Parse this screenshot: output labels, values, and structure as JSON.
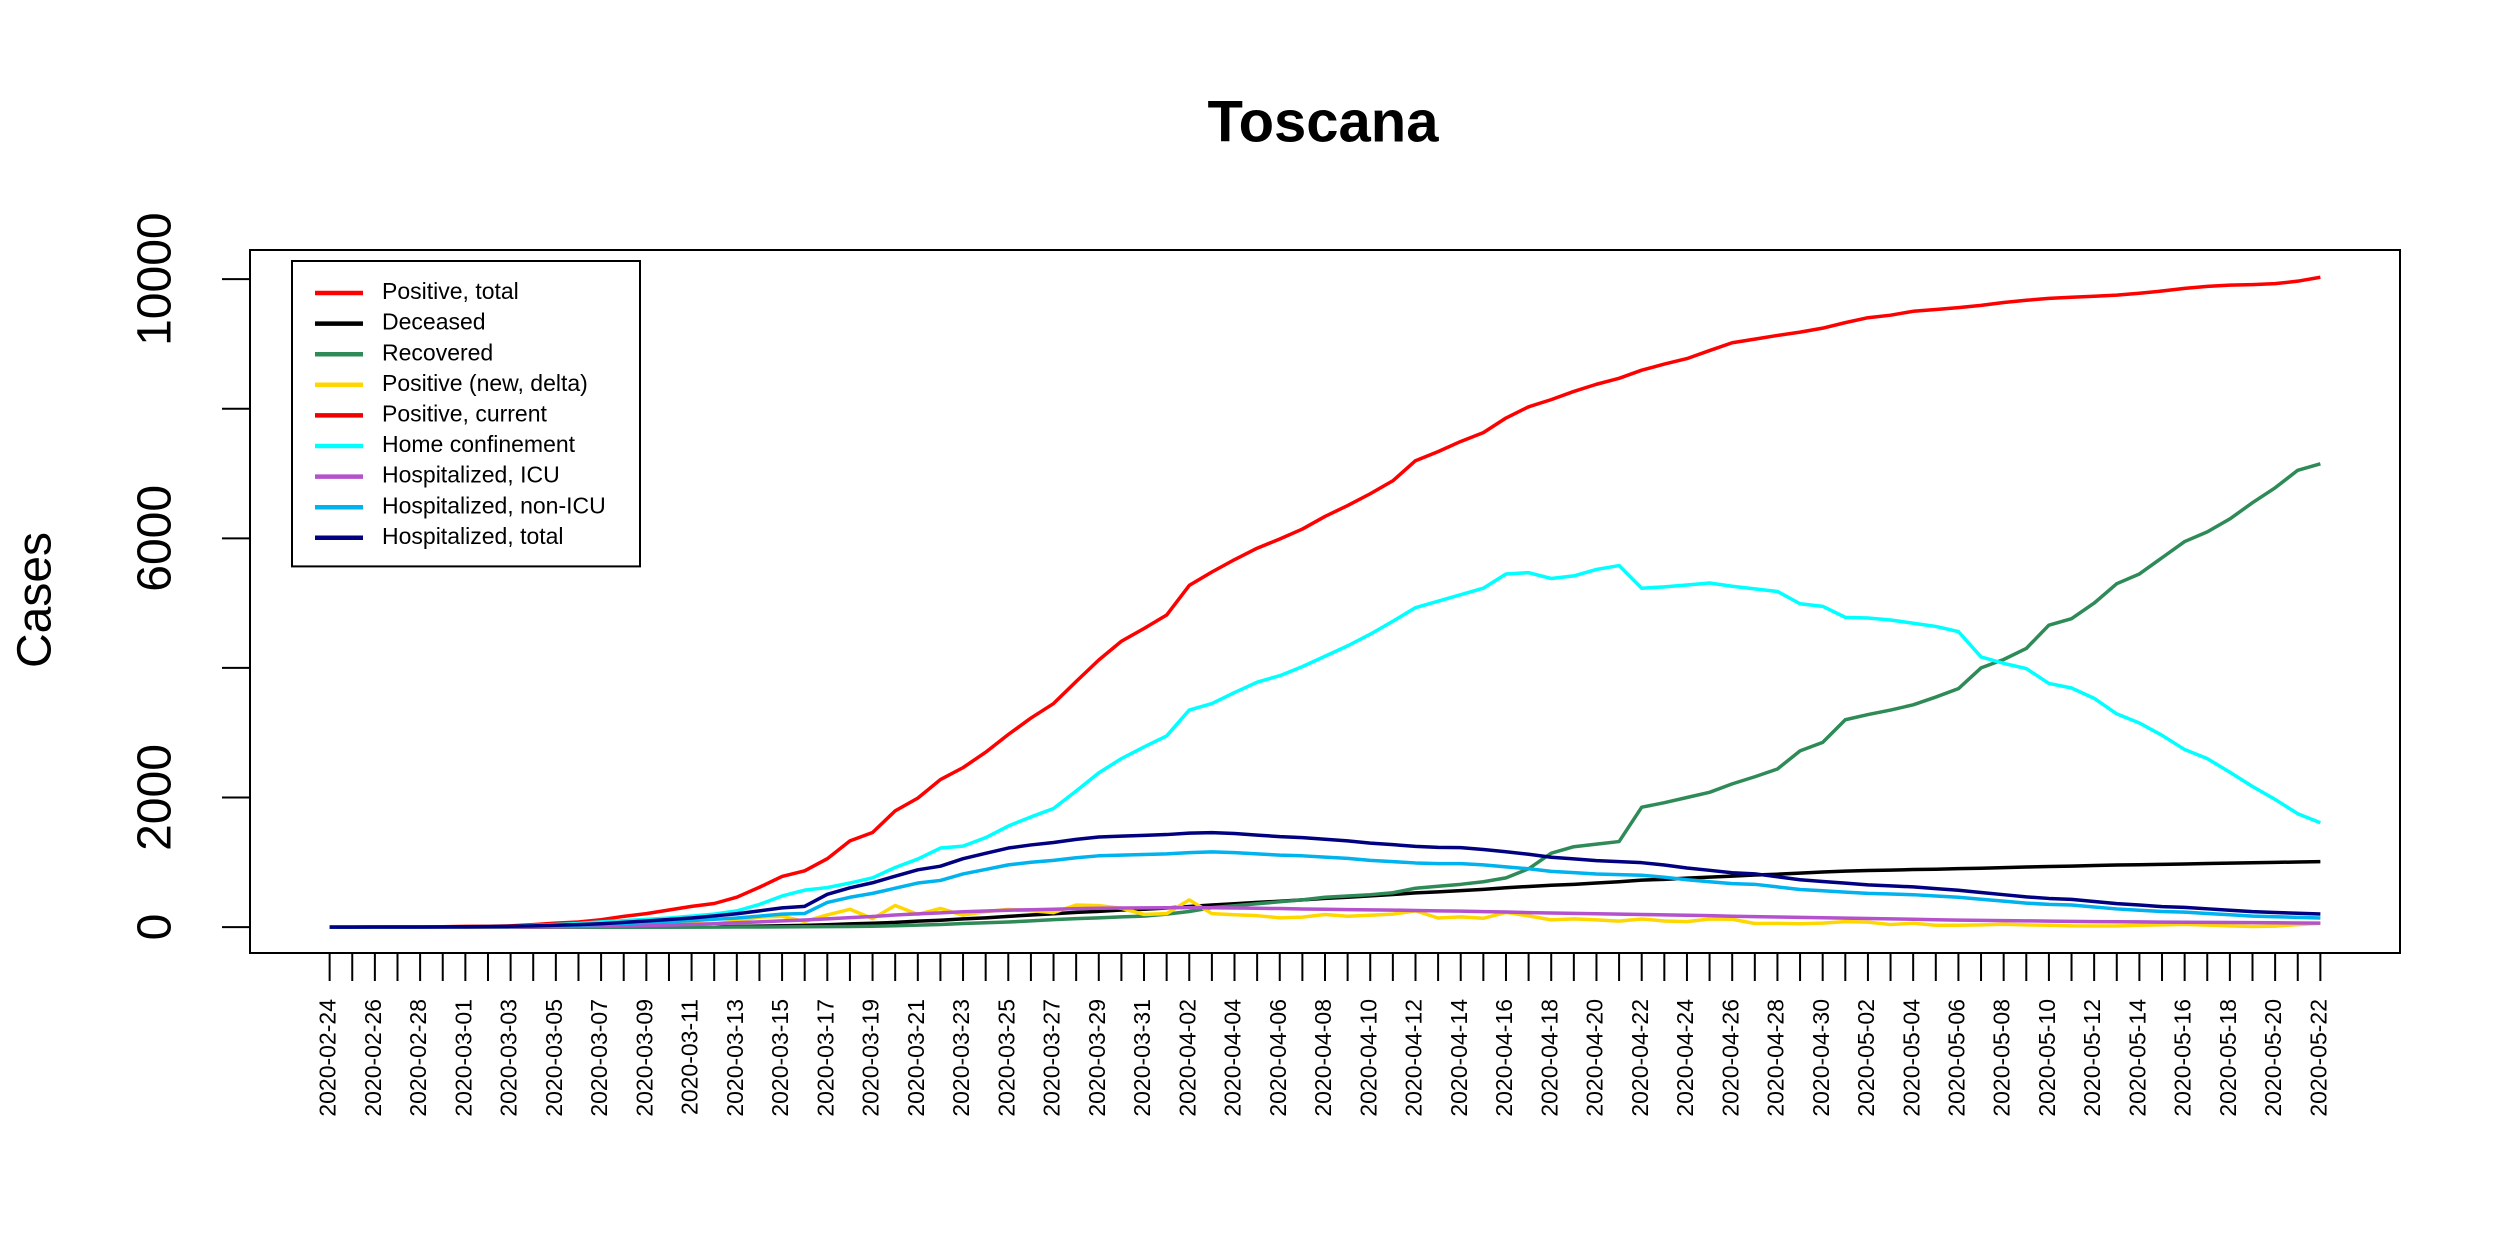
{
  "chart_data": {
    "type": "line",
    "title": "Toscana",
    "y_label": "Cases",
    "legend": "topleft",
    "ylim": [
      -400,
      10450
    ],
    "yticks": [
      0,
      2000,
      6000,
      10000
    ],
    "yticks_unlabeled": [
      4000,
      8000
    ],
    "categories": [
      "2020-02-24",
      null,
      "2020-02-26",
      null,
      "2020-02-28",
      null,
      "2020-03-01",
      null,
      "2020-03-03",
      null,
      "2020-03-05",
      null,
      "2020-03-07",
      null,
      "2020-03-09",
      null,
      "2020-03-11",
      null,
      "2020-03-13",
      null,
      "2020-03-15",
      null,
      "2020-03-17",
      null,
      "2020-03-19",
      null,
      "2020-03-21",
      null,
      "2020-03-23",
      null,
      "2020-03-25",
      null,
      "2020-03-27",
      null,
      "2020-03-29",
      null,
      "2020-03-31",
      null,
      "2020-04-02",
      null,
      "2020-04-04",
      null,
      "2020-04-06",
      null,
      "2020-04-08",
      null,
      "2020-04-10",
      null,
      "2020-04-12",
      null,
      "2020-04-14",
      null,
      "2020-04-16",
      null,
      "2020-04-18",
      null,
      "2020-04-20",
      null,
      "2020-04-22",
      null,
      "2020-04-24",
      null,
      "2020-04-26",
      null,
      "2020-04-28",
      null,
      "2020-04-30",
      null,
      "2020-05-02",
      null,
      "2020-05-04",
      null,
      "2020-05-06",
      null,
      "2020-05-08",
      null,
      "2020-05-10",
      null,
      "2020-05-12",
      null,
      "2020-05-14",
      null,
      "2020-05-16",
      null,
      "2020-05-18",
      null,
      "2020-05-20",
      null,
      "2020-05-22"
    ],
    "series": [
      {
        "name": "Positive, total",
        "color": "#ff0000",
        "values": [
          0,
          0,
          2,
          2,
          4,
          6,
          11,
          13,
          19,
          38,
          61,
          79,
          113,
          166,
          208,
          264,
          320,
          364,
          461,
          615,
          781,
          868,
          1055,
          1330,
          1460,
          1793,
          1990,
          2277,
          2461,
          2699,
          2972,
          3226,
          3450,
          3791,
          4122,
          4412,
          4608,
          4816,
          5273,
          5480,
          5671,
          5847,
          5990,
          6143,
          6338,
          6506,
          6688,
          6888,
          7198,
          7338,
          7495,
          7631,
          7857,
          8030,
          8141,
          8267,
          8378,
          8470,
          8595,
          8689,
          8774,
          8898,
          9019,
          9074,
          9131,
          9183,
          9244,
          9329,
          9405,
          9444,
          9504,
          9532,
          9561,
          9596,
          9640,
          9674,
          9703,
          9721,
          9737,
          9754,
          9783,
          9817,
          9858,
          9889,
          9908,
          9916,
          9931,
          9969,
          10029
        ]
      },
      {
        "name": "Deceased",
        "color": "#000000",
        "values": [
          0,
          0,
          0,
          0,
          0,
          0,
          0,
          0,
          0,
          0,
          1,
          1,
          1,
          1,
          1,
          2,
          4,
          6,
          9,
          14,
          20,
          27,
          37,
          49,
          60,
          72,
          92,
          106,
          126,
          143,
          166,
          186,
          206,
          227,
          242,
          263,
          276,
          295,
          318,
          341,
          360,
          381,
          399,
          419,
          442,
          461,
          482,
          503,
          528,
          544,
          563,
          582,
          607,
          627,
          646,
          660,
          680,
          699,
          725,
          737,
          756,
          771,
          786,
          803,
          816,
          833,
          850,
          864,
          873,
          879,
          888,
          893,
          903,
          908,
          917,
          927,
          935,
          940,
          951,
          958,
          962,
          968,
          974,
          981,
          987,
          993,
          999,
          1004,
          1010
        ]
      },
      {
        "name": "Recovered",
        "color": "#2e8b57",
        "values": [
          0,
          0,
          0,
          0,
          0,
          0,
          0,
          0,
          0,
          0,
          0,
          0,
          0,
          0,
          0,
          0,
          0,
          0,
          1,
          2,
          3,
          5,
          7,
          9,
          12,
          20,
          30,
          40,
          55,
          66,
          78,
          95,
          115,
          130,
          142,
          158,
          170,
          200,
          240,
          300,
          330,
          360,
          390,
          420,
          460,
          480,
          500,
          530,
          600,
          630,
          660,
          700,
          760,
          900,
          1140,
          1240,
          1280,
          1320,
          1850,
          1920,
          2000,
          2080,
          2210,
          2320,
          2440,
          2720,
          2850,
          3200,
          3280,
          3350,
          3430,
          3550,
          3680,
          4000,
          4130,
          4300,
          4660,
          4760,
          5000,
          5300,
          5450,
          5700,
          5950,
          6100,
          6300,
          6550,
          6780,
          7050,
          7150
        ]
      },
      {
        "name": "Positive (new, delta)",
        "color": "#ffd700",
        "values": [
          0,
          0,
          2,
          0,
          2,
          2,
          5,
          2,
          6,
          19,
          23,
          18,
          34,
          53,
          42,
          56,
          56,
          44,
          97,
          154,
          166,
          87,
          187,
          275,
          130,
          333,
          197,
          287,
          184,
          238,
          273,
          254,
          224,
          341,
          331,
          290,
          196,
          208,
          420,
          207,
          191,
          176,
          143,
          153,
          195,
          168,
          182,
          200,
          250,
          140,
          157,
          136,
          226,
          173,
          111,
          126,
          111,
          92,
          125,
          94,
          85,
          124,
          121,
          55,
          57,
          52,
          61,
          85,
          76,
          39,
          60,
          28,
          29,
          35,
          44,
          34,
          29,
          18,
          16,
          17,
          29,
          34,
          41,
          31,
          19,
          8,
          15,
          38,
          60
        ]
      },
      {
        "name": "Positive, current",
        "color": "#ee0000",
        "values": [
          null,
          null,
          null,
          null,
          null,
          null,
          null,
          null,
          null,
          null,
          null,
          null,
          null,
          null,
          null,
          null,
          null,
          null,
          null,
          null,
          null,
          null,
          null,
          null,
          null,
          null,
          null,
          null,
          null,
          null,
          null,
          null,
          null,
          null,
          null,
          null,
          null,
          null,
          null,
          null,
          null,
          null,
          null,
          null,
          null,
          null,
          null,
          null,
          null,
          null,
          null,
          null,
          null,
          null,
          null,
          null,
          null,
          null,
          null,
          null,
          null,
          null,
          null,
          null,
          null,
          null,
          null,
          null,
          null,
          null,
          null,
          null,
          null,
          null,
          null,
          null,
          null,
          null,
          null,
          null,
          null,
          null,
          null,
          null,
          null,
          null,
          null,
          null,
          null
        ]
      },
      {
        "name": "Home confinement",
        "color": "#00ffff",
        "values": [
          0,
          0,
          0,
          0,
          1,
          2,
          5,
          7,
          10,
          25,
          40,
          55,
          80,
          100,
          120,
          140,
          170,
          200,
          250,
          350,
          480,
          570,
          610,
          680,
          760,
          920,
          1050,
          1220,
          1250,
          1380,
          1560,
          1700,
          1830,
          2100,
          2380,
          2600,
          2780,
          2950,
          3350,
          3450,
          3620,
          3780,
          3880,
          4020,
          4180,
          4340,
          4520,
          4720,
          4930,
          5030,
          5130,
          5230,
          5450,
          5470,
          5380,
          5420,
          5520,
          5580,
          5230,
          5250,
          5280,
          5310,
          5260,
          5220,
          5180,
          4990,
          4950,
          4780,
          4770,
          4740,
          4690,
          4640,
          4560,
          4170,
          4070,
          3990,
          3760,
          3690,
          3530,
          3290,
          3150,
          2960,
          2740,
          2600,
          2390,
          2170,
          1970,
          1750,
          1610
        ]
      },
      {
        "name": "Hospitalized, ICU",
        "color": "#b452cd",
        "values": [
          0,
          0,
          0,
          0,
          0,
          0,
          1,
          1,
          2,
          4,
          6,
          8,
          12,
          18,
          24,
          32,
          40,
          52,
          66,
          80,
          96,
          110,
          126,
          146,
          164,
          186,
          204,
          220,
          236,
          248,
          260,
          268,
          276,
          284,
          290,
          294,
          296,
          298,
          300,
          298,
          294,
          290,
          286,
          280,
          276,
          270,
          266,
          262,
          256,
          250,
          246,
          238,
          232,
          224,
          218,
          212,
          206,
          200,
          194,
          188,
          182,
          176,
          168,
          162,
          156,
          150,
          144,
          138,
          132,
          126,
          120,
          114,
          108,
          104,
          100,
          96,
          92,
          88,
          84,
          82,
          80,
          76,
          74,
          72,
          70,
          68,
          66,
          64,
          62
        ]
      },
      {
        "name": "Hospitalized, non-ICU",
        "color": "#00b2ee",
        "values": [
          0,
          0,
          1,
          1,
          2,
          3,
          4,
          6,
          10,
          15,
          22,
          30,
          40,
          55,
          70,
          85,
          100,
          120,
          140,
          170,
          200,
          210,
          380,
          460,
          520,
          600,
          680,
          720,
          820,
          890,
          960,
          1000,
          1030,
          1070,
          1100,
          1110,
          1120,
          1130,
          1150,
          1160,
          1150,
          1130,
          1110,
          1100,
          1080,
          1060,
          1030,
          1010,
          990,
          980,
          980,
          960,
          930,
          900,
          860,
          840,
          820,
          810,
          800,
          770,
          730,
          700,
          670,
          660,
          620,
          580,
          560,
          540,
          520,
          510,
          500,
          480,
          460,
          430,
          400,
          370,
          350,
          340,
          310,
          280,
          260,
          240,
          230,
          210,
          190,
          170,
          160,
          150,
          140
        ]
      },
      {
        "name": "Hospitalized, total",
        "color": "#000080",
        "values": [
          0,
          0,
          1,
          1,
          2,
          3,
          5,
          7,
          12,
          19,
          28,
          38,
          52,
          73,
          94,
          117,
          140,
          172,
          206,
          250,
          296,
          320,
          506,
          606,
          684,
          786,
          884,
          940,
          1056,
          1138,
          1220,
          1268,
          1306,
          1354,
          1390,
          1404,
          1416,
          1428,
          1450,
          1458,
          1444,
          1420,
          1396,
          1380,
          1356,
          1330,
          1296,
          1272,
          1246,
          1230,
          1226,
          1198,
          1162,
          1124,
          1078,
          1052,
          1026,
          1010,
          994,
          958,
          912,
          876,
          838,
          822,
          776,
          730,
          704,
          678,
          652,
          636,
          620,
          594,
          568,
          534,
          500,
          466,
          442,
          428,
          394,
          362,
          340,
          316,
          304,
          282,
          260,
          238,
          226,
          214,
          202
        ]
      }
    ]
  }
}
